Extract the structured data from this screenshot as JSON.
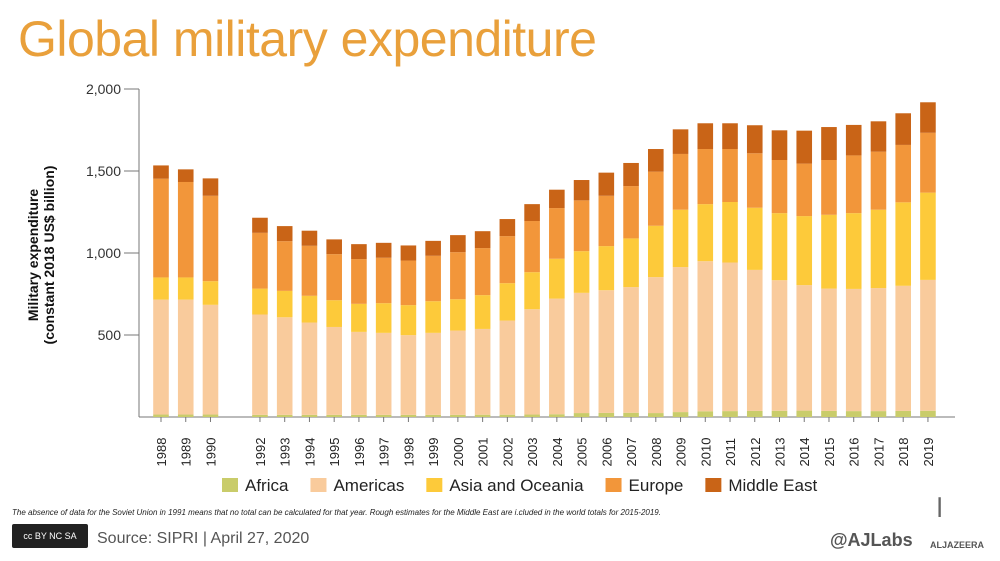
{
  "title": "Global military expenditure",
  "note": "The absence of data for the Soviet Union in 1991 means that no total can be calculated for that year. Rough estimates for the Middle East are i.cluded in the world totals for 2015-2019.",
  "source": "Source: SIPRI |  April 27, 2020",
  "handle": "@AJLabs",
  "brand": "ALJAZEERA",
  "license": "cc BY NC SA",
  "chart_data": {
    "type": "bar",
    "stacked": true,
    "title": "Global military expenditure",
    "ylabel": "Military expenditure (constant 2018 US$ billion)",
    "ylabel_lines": [
      "Military expenditure",
      "(constant 2018 US$ billion)"
    ],
    "xlabel": "",
    "ylim": [
      0,
      2000
    ],
    "yticks": [
      "500",
      "1,000",
      "1,500",
      "2,000"
    ],
    "ytick_values": [
      500,
      1000,
      1500,
      2000
    ],
    "grid": false,
    "legend_position": "bottom",
    "categories": [
      "1988",
      "1989",
      "1990",
      "1992",
      "1993",
      "1994",
      "1995",
      "1996",
      "1997",
      "1998",
      "1999",
      "2000",
      "2001",
      "2002",
      "2003",
      "2004",
      "2005",
      "2006",
      "2007",
      "2008",
      "2009",
      "2010",
      "2011",
      "2012",
      "2013",
      "2014",
      "2015",
      "2016",
      "2017",
      "2018",
      "2019"
    ],
    "series": [
      {
        "name": "Africa",
        "color": "#C9CC6A",
        "values": [
          15,
          15,
          15,
          13,
          13,
          13,
          13,
          13,
          13,
          13,
          13,
          13,
          14,
          14,
          15,
          17,
          24,
          25,
          26,
          24,
          30,
          35,
          36,
          37,
          38,
          39,
          37,
          36,
          36,
          37,
          38
        ]
      },
      {
        "name": "Americas",
        "color": "#F9CB9C",
        "values": [
          701,
          701,
          669,
          612,
          595,
          563,
          536,
          506,
          500,
          486,
          500,
          514,
          523,
          574,
          642,
          705,
          733,
          748,
          766,
          829,
          884,
          915,
          906,
          860,
          796,
          765,
          746,
          745,
          750,
          763,
          798
        ]
      },
      {
        "name": "Asia and Oceania",
        "color": "#FDCA3A",
        "values": [
          135,
          135,
          144,
          158,
          161,
          163,
          163,
          171,
          181,
          183,
          193,
          191,
          206,
          228,
          226,
          243,
          254,
          269,
          297,
          313,
          350,
          348,
          369,
          379,
          409,
          421,
          450,
          462,
          478,
          509,
          532
        ]
      },
      {
        "name": "Europe",
        "color": "#F2963A",
        "values": [
          602,
          582,
          521,
          340,
          303,
          305,
          281,
          273,
          277,
          272,
          277,
          287,
          287,
          287,
          312,
          309,
          310,
          307,
          319,
          330,
          340,
          336,
          323,
          332,
          324,
          320,
          334,
          352,
          354,
          350,
          365
        ]
      },
      {
        "name": "Middle East",
        "color": "#C96417",
        "values": [
          81,
          77,
          106,
          92,
          92,
          92,
          90,
          91,
          91,
          92,
          91,
          104,
          103,
          104,
          103,
          112,
          124,
          141,
          141,
          138,
          150,
          157,
          157,
          171,
          181,
          201,
          201,
          186,
          185,
          193,
          186
        ]
      }
    ]
  }
}
